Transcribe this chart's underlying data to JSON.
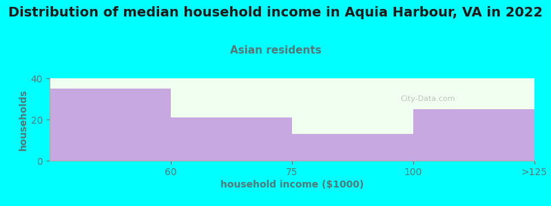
{
  "title": "Distribution of median household income in Aquia Harbour, VA in 2022",
  "subtitle": "Asian residents",
  "xlabel": "household income ($1000)",
  "ylabel": "households",
  "categories": [
    "60",
    "75",
    "100",
    ">125"
  ],
  "values": [
    35,
    21,
    13,
    25
  ],
  "bar_color": "#c8a8e0",
  "background_color": "#00ffff",
  "plot_bg_color": "#f0fff0",
  "ylim": [
    0,
    40
  ],
  "yticks": [
    0,
    20,
    40
  ],
  "title_fontsize": 14,
  "subtitle_fontsize": 11,
  "title_color": "#1a1a1a",
  "subtitle_color": "#557777",
  "axis_label_fontsize": 10,
  "tick_fontsize": 10,
  "watermark": "City-Data.com"
}
